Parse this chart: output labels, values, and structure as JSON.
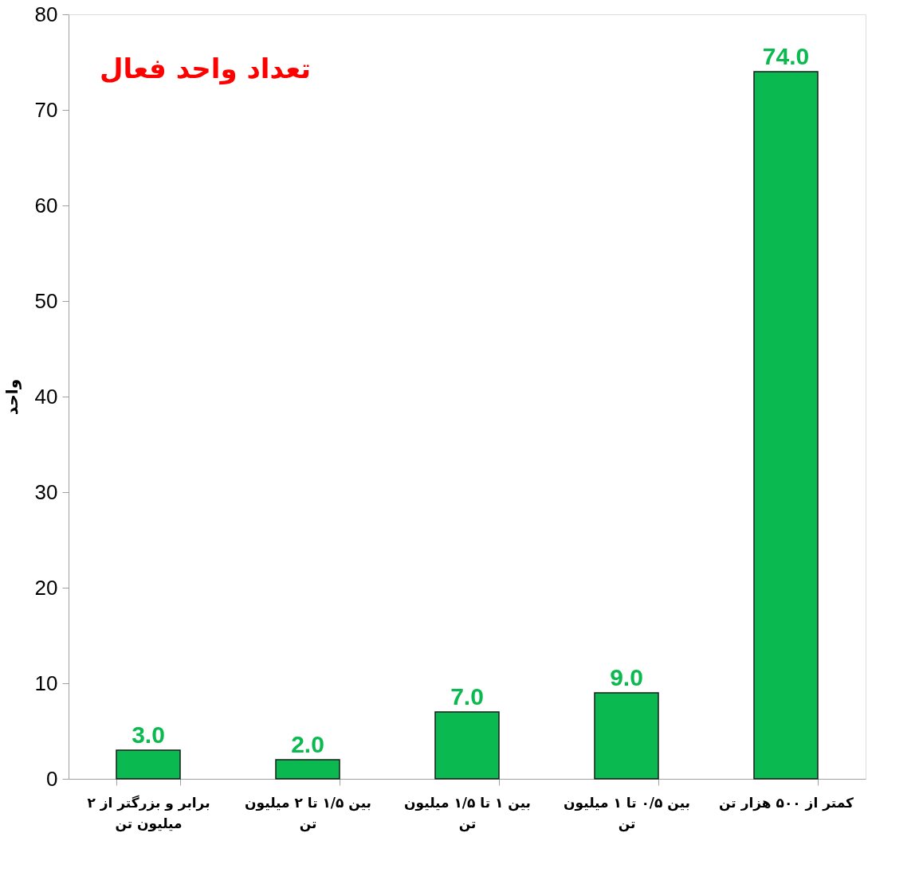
{
  "chart_data": {
    "type": "bar",
    "title": "تعداد واحد فعال",
    "ylabel": "واحد",
    "categories": [
      "برابر و بزرگتر از ۲ میلیون تن",
      "بین ۱/۵ تا ۲ میلیون تن",
      "بین ۱ تا ۱/۵ میلیون تن",
      "بین ۰/۵ تا ۱ میلیون تن",
      "کمتر از ۵۰۰ هزار تن"
    ],
    "values": [
      3.0,
      2.0,
      7.0,
      9.0,
      74.0
    ],
    "value_labels": [
      "3.0",
      "2.0",
      "7.0",
      "9.0",
      "74.0"
    ],
    "color": "#0ab94f",
    "ylim": [
      0,
      80
    ],
    "yticks": [
      0,
      10,
      20,
      30,
      40,
      50,
      60,
      70,
      80
    ],
    "grid": false
  }
}
